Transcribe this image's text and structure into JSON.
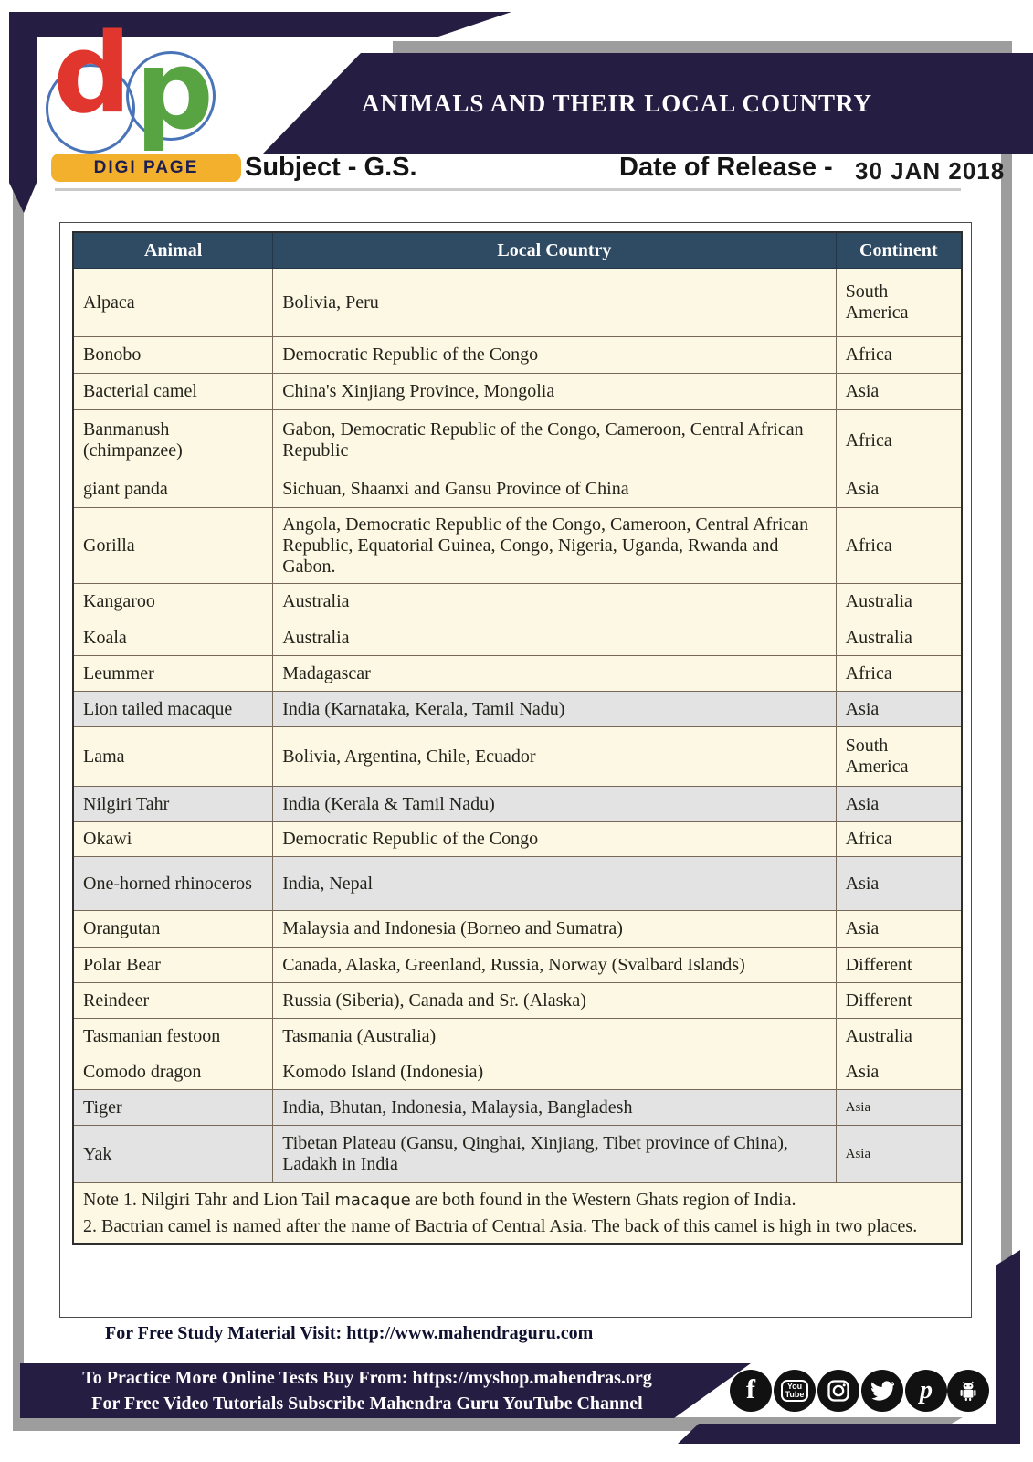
{
  "header": {
    "logo": {
      "letter_d": "d",
      "letter_p": "p",
      "badge": "DIGI PAGE"
    },
    "title": "ANIMALS AND THEIR LOCAL COUNTRY",
    "subject": "Subject - G.S.",
    "date_label": "Date of Release -",
    "date_value": "30 JAN 2018"
  },
  "table": {
    "columns": [
      "Animal",
      "Local Country",
      "Continent"
    ],
    "rows": [
      {
        "animal": "Alpaca",
        "country": "Bolivia, Peru",
        "continent": "South America",
        "shade": false,
        "small": false
      },
      {
        "animal": "Bonobo",
        "country": "Democratic Republic of the Congo",
        "continent": "Africa",
        "shade": false,
        "small": false
      },
      {
        "animal": "Bacterial camel",
        "country": "China's Xinjiang Province, Mongolia",
        "continent": "Asia",
        "shade": false,
        "small": false
      },
      {
        "animal": "Banmanush (chimpanzee)",
        "country": "Gabon, Democratic Republic of the Congo, Cameroon, Central African Republic",
        "continent": "Africa",
        "shade": false,
        "small": false
      },
      {
        "animal": "giant panda",
        "country": "Sichuan, Shaanxi and Gansu Province of China",
        "continent": "Asia",
        "shade": false,
        "small": false
      },
      {
        "animal": "Gorilla",
        "country": "Angola, Democratic Republic of the Congo, Cameroon, Central African Republic, Equatorial Guinea, Congo, Nigeria, Uganda, Rwanda and Gabon.",
        "continent": "Africa",
        "shade": false,
        "small": false
      },
      {
        "animal": "Kangaroo",
        "country": "Australia",
        "continent": "Australia",
        "shade": false,
        "small": false
      },
      {
        "animal": "Koala",
        "country": "Australia",
        "continent": "Australia",
        "shade": false,
        "small": false
      },
      {
        "animal": "Leummer",
        "country": "Madagascar",
        "continent": "Africa",
        "shade": false,
        "small": false
      },
      {
        "animal": "Lion tailed macaque",
        "country": "India (Karnataka, Kerala, Tamil Nadu)",
        "continent": "Asia",
        "shade": true,
        "small": false
      },
      {
        "animal": "Lama",
        "country": "Bolivia, Argentina, Chile, Ecuador",
        "continent": "South America",
        "shade": false,
        "small": false
      },
      {
        "animal": "Nilgiri Tahr",
        "country": "India (Kerala & Tamil Nadu)",
        "continent": "Asia",
        "shade": true,
        "small": false
      },
      {
        "animal": "Okawi",
        "country": "Democratic Republic of the Congo",
        "continent": "Africa",
        "shade": false,
        "small": false
      },
      {
        "animal": "One-horned rhinoceros",
        "country": "India, Nepal",
        "continent": "Asia",
        "shade": true,
        "small": false
      },
      {
        "animal": "Orangutan",
        "country": "Malaysia and Indonesia (Borneo and Sumatra)",
        "continent": "Asia",
        "shade": false,
        "small": false
      },
      {
        "animal": "Polar Bear",
        "country": "Canada, Alaska, Greenland, Russia, Norway (Svalbard Islands)",
        "continent": "Different",
        "shade": false,
        "small": false
      },
      {
        "animal": "Reindeer",
        "country": "Russia (Siberia), Canada and Sr. (Alaska)",
        "continent": "Different",
        "shade": false,
        "small": false
      },
      {
        "animal": "Tasmanian festoon",
        "country": "Tasmania (Australia)",
        "continent": "Australia",
        "shade": false,
        "small": false
      },
      {
        "animal": "Comodo dragon",
        "country": "Komodo Island (Indonesia)",
        "continent": "Asia",
        "shade": false,
        "small": false
      },
      {
        "animal": "Tiger",
        "country": "India, Bhutan, Indonesia, Malaysia, Bangladesh",
        "continent": "Asia",
        "shade": true,
        "small": true
      },
      {
        "animal": "Yak",
        "country": "Tibetan Plateau (Gansu, Qinghai, Xinjiang, Tibet province of China), Ladakh in India",
        "continent": "Asia",
        "shade": true,
        "small": true
      }
    ],
    "note": {
      "l1_pre": "Note 1. Nilgiri Tahr and Lion Tail ",
      "l1_word": "macaque",
      "l1_post": " are both found in the Western Ghats region of India.",
      "l2": "2. Bactrian camel is named after the name of Bactria of Central Asia. The back of this camel is high in two places."
    }
  },
  "footer": {
    "study_label": "For Free Study Material Visit: ",
    "study_url": "http://www.mahendraguru.com",
    "band_line1_pre": "To Practice More Online Tests Buy From: ",
    "band_line1_url": "https://myshop.mahendras.org",
    "band_line2": "For Free Video Tutorials Subscribe Mahendra Guru YouTube Channel",
    "social": [
      "facebook",
      "youtube",
      "instagram",
      "twitter",
      "pinterest",
      "android"
    ]
  },
  "colors": {
    "navy": "#251e42",
    "table_header": "#2f4a63",
    "row_cream": "#fdf8e3",
    "row_gray": "#e3e3e3",
    "badge_yellow": "#f2b02c",
    "logo_red": "#e0362e",
    "logo_green": "#58a342",
    "ring_blue": "#4a74b8",
    "shadow_gray": "#9d9d9d"
  }
}
